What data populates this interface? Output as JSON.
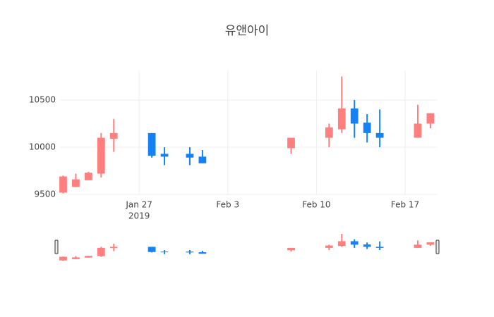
{
  "chart_data": {
    "type": "candlestick",
    "title": "유앤아이",
    "x": [
      "2019-01-21",
      "2019-01-22",
      "2019-01-23",
      "2019-01-24",
      "2019-01-25",
      "2019-01-28",
      "2019-01-29",
      "2019-01-31",
      "2019-02-01",
      "2019-02-08",
      "2019-02-11",
      "2019-02-12",
      "2019-02-13",
      "2019-02-14",
      "2019-02-15",
      "2019-02-18",
      "2019-02-19"
    ],
    "open": [
      9520,
      9580,
      9650,
      9720,
      10090,
      10150,
      9930,
      9930,
      9900,
      9990,
      10100,
      10190,
      10410,
      10260,
      10150,
      10100,
      10250
    ],
    "high": [
      9700,
      9720,
      9740,
      10150,
      10300,
      10150,
      10000,
      10000,
      9970,
      10100,
      10250,
      10750,
      10500,
      10350,
      10400,
      10450,
      10360
    ],
    "low": [
      9510,
      9580,
      9650,
      9680,
      9950,
      9890,
      9810,
      9810,
      9830,
      9930,
      10000,
      10150,
      10100,
      10050,
      10000,
      10100,
      10200
    ],
    "close": [
      9690,
      9660,
      9730,
      10100,
      10150,
      9910,
      9900,
      9890,
      9830,
      10100,
      10210,
      10410,
      10250,
      10150,
      10100,
      10250,
      10360
    ],
    "increasing_color": "#ff7f7f",
    "decreasing_color": "#1482f5",
    "xlim": [
      "2019-01-20 18:00",
      "2019-02-19 13:30"
    ],
    "xticks": [
      {
        "value": "2019-01-27",
        "label": "Jan 27",
        "year": "2019"
      },
      {
        "value": "2019-02-03",
        "label": "Feb 3"
      },
      {
        "value": "2019-02-10",
        "label": "Feb 10"
      },
      {
        "value": "2019-02-17",
        "label": "Feb 17"
      }
    ],
    "ylim": [
      9500,
      10813
    ],
    "yticks": [
      9500,
      10000,
      10500
    ],
    "grid": true,
    "rangeslider": true
  }
}
